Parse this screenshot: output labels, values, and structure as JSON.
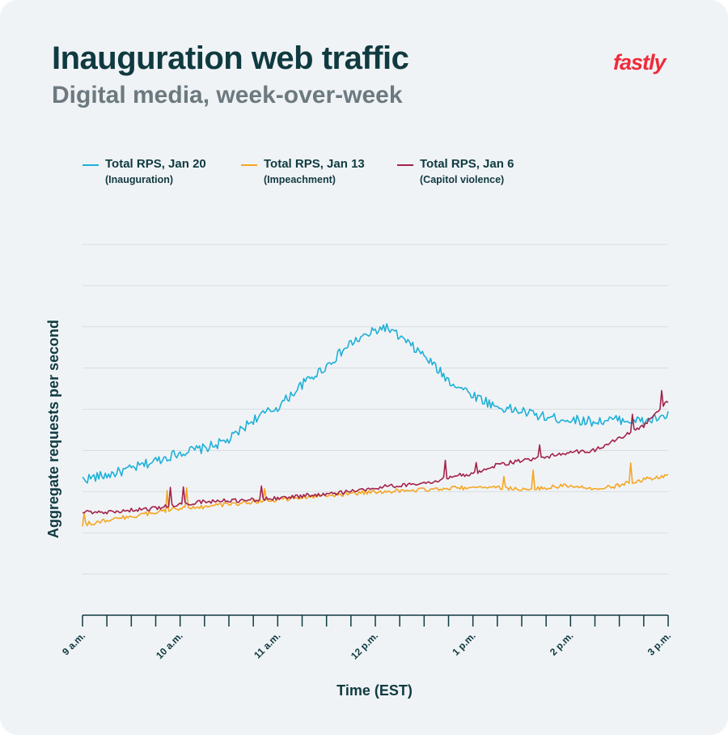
{
  "header": {
    "title": "Inauguration web traffic",
    "subtitle": "Digital media, week-over-week",
    "brand": "fastly"
  },
  "legend": [
    {
      "name": "Total RPS, Jan 20",
      "note": "(Inauguration)",
      "color": "#1fb0d6"
    },
    {
      "name": "Total RPS, Jan 13",
      "note": "(Impeachment)",
      "color": "#f5a623"
    },
    {
      "name": "Total RPS, Jan 6",
      "note": "(Capitol violence)",
      "color": "#a3224a"
    }
  ],
  "chart_data": {
    "type": "line",
    "title": "Inauguration web traffic",
    "subtitle": "Digital media, week-over-week",
    "xlabel": "Time (EST)",
    "ylabel": "Aggregate requests per second",
    "x_tick_labels": [
      "9 a.m.",
      "10 a.m.",
      "11 a.m.",
      "12 p.m.",
      "1 p.m.",
      "2 p.m.",
      "3 p.m."
    ],
    "x_unit": "hours after 9 a.m.",
    "xlim": [
      0,
      6
    ],
    "ylim": [
      0,
      9
    ],
    "y_tick_labels_shown": false,
    "grid": true,
    "legend_position": "top",
    "series": [
      {
        "name": "Total RPS, Jan 20",
        "note": "(Inauguration)",
        "color": "#1fb0d6",
        "x": [
          0,
          0.25,
          0.5,
          0.75,
          1.0,
          1.25,
          1.5,
          1.75,
          2.0,
          2.25,
          2.5,
          2.75,
          3.0,
          3.1,
          3.25,
          3.5,
          3.75,
          4.0,
          4.25,
          4.5,
          4.75,
          5.0,
          5.25,
          5.5,
          5.75,
          6.0
        ],
        "y": [
          3.3,
          3.4,
          3.55,
          3.75,
          3.95,
          4.05,
          4.25,
          4.75,
          5.05,
          5.6,
          6.05,
          6.6,
          6.9,
          7.0,
          6.75,
          6.3,
          5.7,
          5.35,
          5.05,
          4.95,
          4.8,
          4.75,
          4.7,
          4.75,
          4.7,
          4.85
        ]
      },
      {
        "name": "Total RPS, Jan 13",
        "note": "(Impeachment)",
        "color": "#f5a623",
        "x": [
          0,
          0.25,
          0.5,
          0.75,
          1.0,
          1.25,
          1.5,
          1.75,
          2.0,
          2.25,
          2.5,
          2.75,
          3.0,
          3.25,
          3.5,
          3.75,
          4.0,
          4.25,
          4.5,
          4.75,
          5.0,
          5.25,
          5.5,
          5.75,
          6.0
        ],
        "y": [
          2.2,
          2.3,
          2.4,
          2.5,
          2.6,
          2.62,
          2.7,
          2.75,
          2.8,
          2.85,
          2.9,
          2.95,
          3.0,
          3.02,
          3.05,
          3.08,
          3.1,
          3.1,
          3.05,
          3.1,
          3.15,
          3.05,
          3.15,
          3.3,
          3.4
        ]
      },
      {
        "name": "Total RPS, Jan 6",
        "note": "(Capitol violence)",
        "color": "#a3224a",
        "x": [
          0,
          0.25,
          0.5,
          0.75,
          1.0,
          1.25,
          1.5,
          1.75,
          2.0,
          2.25,
          2.5,
          2.75,
          3.0,
          3.25,
          3.5,
          3.75,
          4.0,
          4.25,
          4.5,
          4.75,
          5.0,
          5.25,
          5.5,
          5.75,
          6.0
        ],
        "y": [
          2.5,
          2.5,
          2.55,
          2.6,
          2.7,
          2.75,
          2.78,
          2.8,
          2.85,
          2.9,
          2.95,
          3.0,
          3.1,
          3.15,
          3.2,
          3.35,
          3.45,
          3.65,
          3.75,
          3.85,
          3.95,
          4.0,
          4.3,
          4.6,
          5.2
        ]
      }
    ]
  }
}
